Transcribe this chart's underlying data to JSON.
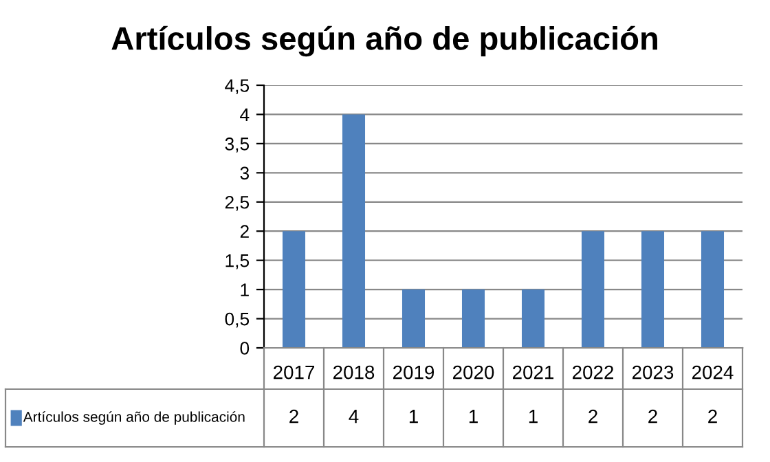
{
  "chart_data": {
    "type": "bar",
    "title": "Artículos según año de publicación",
    "categories": [
      "2017",
      "2018",
      "2019",
      "2020",
      "2021",
      "2022",
      "2023",
      "2024"
    ],
    "series": [
      {
        "name": "Artículos según año de publicación",
        "color": "#4f81bd",
        "values": [
          2,
          4,
          1,
          1,
          1,
          2,
          2,
          2
        ]
      }
    ],
    "ylim": [
      0,
      4.5
    ],
    "yticks": [
      0,
      {
        "value": 0.5,
        "label": "0,5"
      },
      1,
      {
        "value": 1.5,
        "label": "1,5"
      },
      2,
      {
        "value": 2.5,
        "label": "2,5"
      },
      3,
      {
        "value": 3.5,
        "label": "3,5"
      },
      4,
      {
        "value": 4.5,
        "label": "4,5"
      }
    ],
    "grid": "y",
    "legend": "bottom left",
    "data_labels": true
  }
}
